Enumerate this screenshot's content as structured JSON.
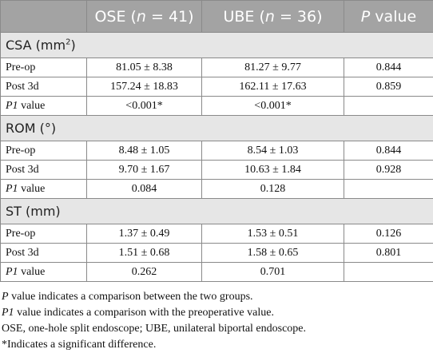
{
  "table": {
    "header": [
      [
        {
          "text": "OSE ("
        },
        {
          "text": "n",
          "italic": true
        },
        {
          "text": " = 41)"
        }
      ],
      [
        {
          "text": "UBE ("
        },
        {
          "text": "n",
          "italic": true
        },
        {
          "text": " = 36)"
        }
      ],
      [
        {
          "text": "P",
          "italic": true
        },
        {
          "text": " value"
        }
      ]
    ],
    "sections": [
      {
        "title": [
          {
            "text": "CSA (mm"
          },
          {
            "text": "2",
            "sup": true
          },
          {
            "text": ")"
          }
        ],
        "rows": [
          {
            "label": [
              {
                "text": "Pre-op"
              }
            ],
            "values": [
              "81.05 ± 8.38",
              "81.27 ± 9.77",
              "0.844"
            ]
          },
          {
            "label": [
              {
                "text": "Post 3d"
              }
            ],
            "values": [
              "157.24 ± 18.83",
              "162.11 ± 17.63",
              "0.859"
            ]
          },
          {
            "label": [
              {
                "text": "P1",
                "italic": true
              },
              {
                "text": " value"
              }
            ],
            "values": [
              "<0.001*",
              "<0.001*"
            ]
          }
        ]
      },
      {
        "title": [
          {
            "text": "ROM (°)"
          }
        ],
        "rows": [
          {
            "label": [
              {
                "text": "Pre-op"
              }
            ],
            "values": [
              "8.48 ± 1.05",
              "8.54 ± 1.03",
              "0.844"
            ]
          },
          {
            "label": [
              {
                "text": "Post 3d"
              }
            ],
            "values": [
              "9.70 ± 1.67",
              "10.63 ± 1.84",
              "0.928"
            ]
          },
          {
            "label": [
              {
                "text": "P1",
                "italic": true
              },
              {
                "text": " value"
              }
            ],
            "values": [
              "0.084",
              "0.128"
            ]
          }
        ]
      },
      {
        "title": [
          {
            "text": "ST (mm)"
          }
        ],
        "rows": [
          {
            "label": [
              {
                "text": "Pre-op"
              }
            ],
            "values": [
              "1.37 ± 0.49",
              "1.53 ± 0.51",
              "0.126"
            ]
          },
          {
            "label": [
              {
                "text": "Post 3d"
              }
            ],
            "values": [
              "1.51 ± 0.68",
              "1.58 ± 0.65",
              "0.801"
            ]
          },
          {
            "label": [
              {
                "text": "P1",
                "italic": true
              },
              {
                "text": " value"
              }
            ],
            "values": [
              "0.262",
              "0.701"
            ]
          }
        ]
      }
    ]
  },
  "footnotes": [
    [
      {
        "text": "P",
        "italic": true
      },
      {
        "text": " value indicates a comparison between the two groups."
      }
    ],
    [
      {
        "text": "P1",
        "italic": true
      },
      {
        "text": " value indicates a comparison with the preoperative value."
      }
    ],
    [
      {
        "text": "OSE, one-hole split endoscope; UBE, unilateral biportal endoscope."
      }
    ],
    [
      {
        "text": "*Indicates a significant difference."
      }
    ]
  ]
}
